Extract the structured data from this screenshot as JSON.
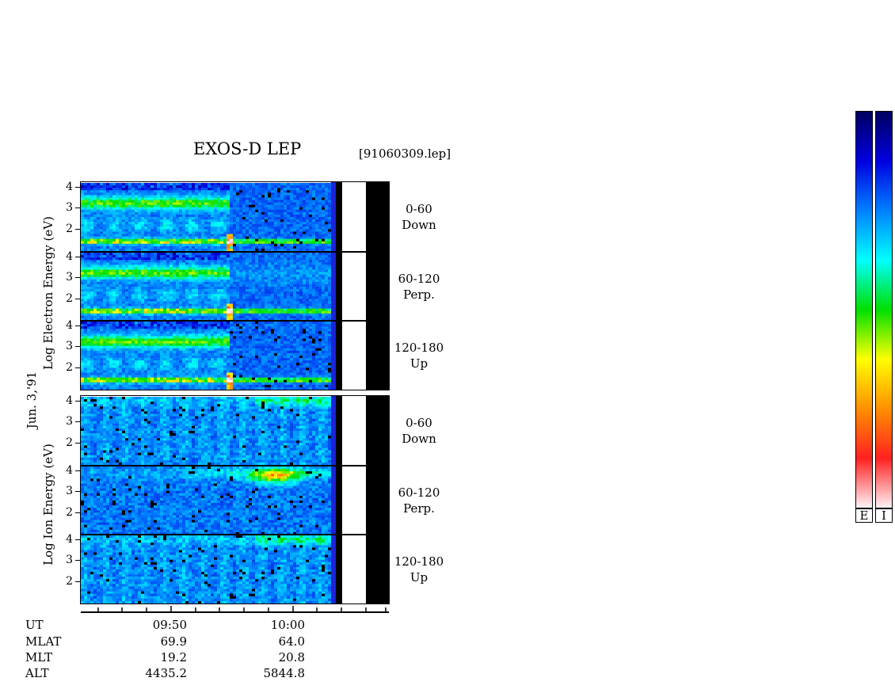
{
  "title": "EXOS-D LEP",
  "file_label": "[91060309.lep]",
  "date_label": "Jun. 3,'91",
  "electron_axis_label": "Log  Electron  Energy  (eV)",
  "ion_axis_label": "Log  Ion  Energy  (eV)",
  "energy_ticks": [
    "4",
    "3",
    "2"
  ],
  "panels": [
    {
      "species": "electron",
      "pitch": "0-60",
      "dir": "Down"
    },
    {
      "species": "electron",
      "pitch": "60-120",
      "dir": "Perp."
    },
    {
      "species": "electron",
      "pitch": "120-180",
      "dir": "Up"
    },
    {
      "species": "ion",
      "pitch": "0-60",
      "dir": "Down"
    },
    {
      "species": "ion",
      "pitch": "60-120",
      "dir": "Perp."
    },
    {
      "species": "ion",
      "pitch": "120-180",
      "dir": "Up"
    }
  ],
  "time_axis": {
    "rows": [
      {
        "label": "UT",
        "values": [
          "09:50",
          "10:00"
        ]
      },
      {
        "label": "MLAT",
        "values": [
          "69.9",
          "64.0"
        ]
      },
      {
        "label": "MLT",
        "values": [
          "19.2",
          "20.8"
        ]
      },
      {
        "label": "ALT",
        "values": [
          "4435.2",
          "5844.8"
        ]
      }
    ]
  },
  "colorbar": {
    "labels": [
      "E",
      "I"
    ],
    "colors": [
      "#fff2f5",
      "#ff2020",
      "#ff9000",
      "#ffff00",
      "#00e000",
      "#00ffff",
      "#0080ff",
      "#0000e0",
      "#000060"
    ]
  },
  "chart_data": {
    "type": "heatmap",
    "title": "EXOS-D LEP",
    "x": [
      "09:50",
      "10:00"
    ],
    "ylabel_electron": "Log  Electron  Energy  (eV)",
    "ylabel_ion": "Log  Ion  Energy  (eV)",
    "ylim": [
      1,
      4.2
    ],
    "yticks": [
      2,
      3,
      4
    ],
    "series": [
      {
        "name": "0-60 Down"
      },
      {
        "name": "60-120 Perp."
      },
      {
        "name": "120-180 Up"
      }
    ],
    "legend": "right"
  }
}
